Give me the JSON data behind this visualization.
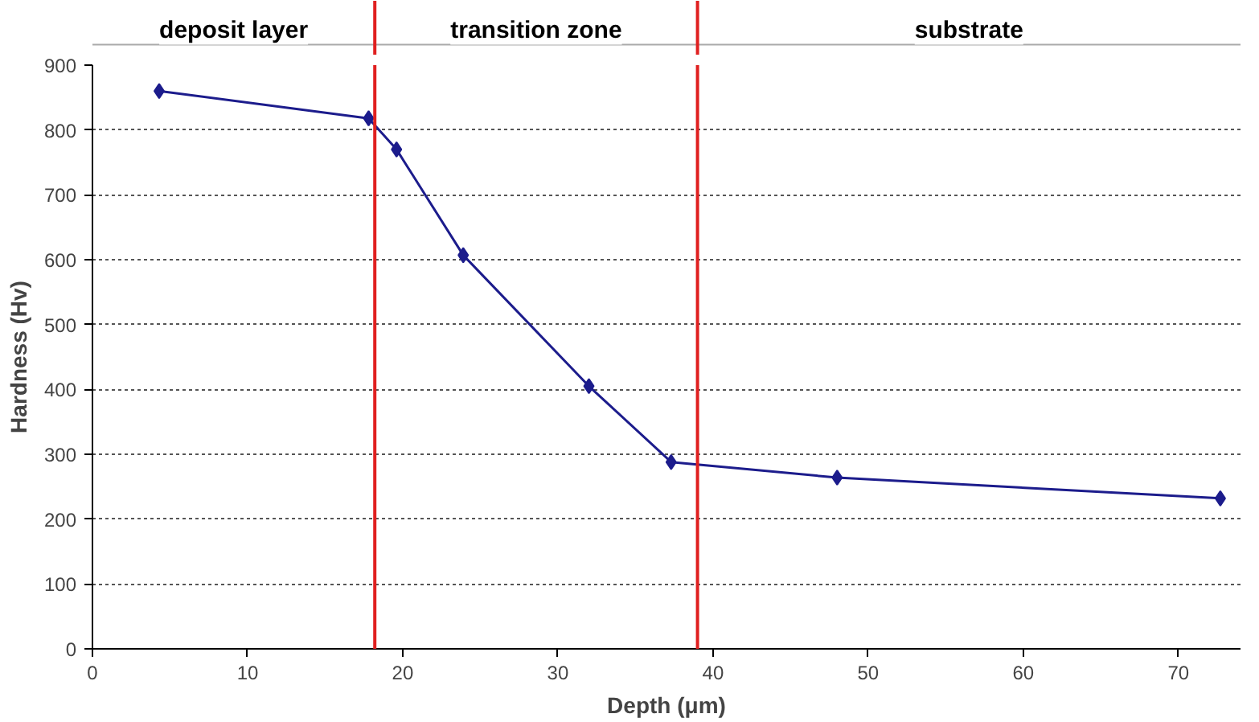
{
  "chart_data": {
    "type": "line",
    "xlabel": "Depth (μm)",
    "ylabel": "Hardness (Hv)",
    "x": [
      4.3,
      17.8,
      19.6,
      23.9,
      32.0,
      37.3,
      48.0,
      72.7
    ],
    "series": [
      {
        "color": "#1c1c8c",
        "values": [
          860,
          818,
          770,
          607,
          405,
          288,
          264,
          232
        ]
      }
    ],
    "xlim": [
      0,
      74
    ],
    "xticks": [
      0,
      10,
      20,
      30,
      40,
      50,
      60,
      70
    ],
    "ylim": [
      0,
      900
    ],
    "yticks": [
      0,
      100,
      200,
      300,
      400,
      500,
      600,
      700,
      800,
      900
    ],
    "grid": "y",
    "marker": "diamond",
    "line_style": "solid",
    "ref_lines": [
      {
        "axis": "x",
        "value": 18.2,
        "color": "#e02020"
      },
      {
        "axis": "x",
        "value": 39.0,
        "color": "#e02020"
      }
    ],
    "annotations": [
      "deposit layer",
      "transition zone",
      "substrate"
    ]
  }
}
